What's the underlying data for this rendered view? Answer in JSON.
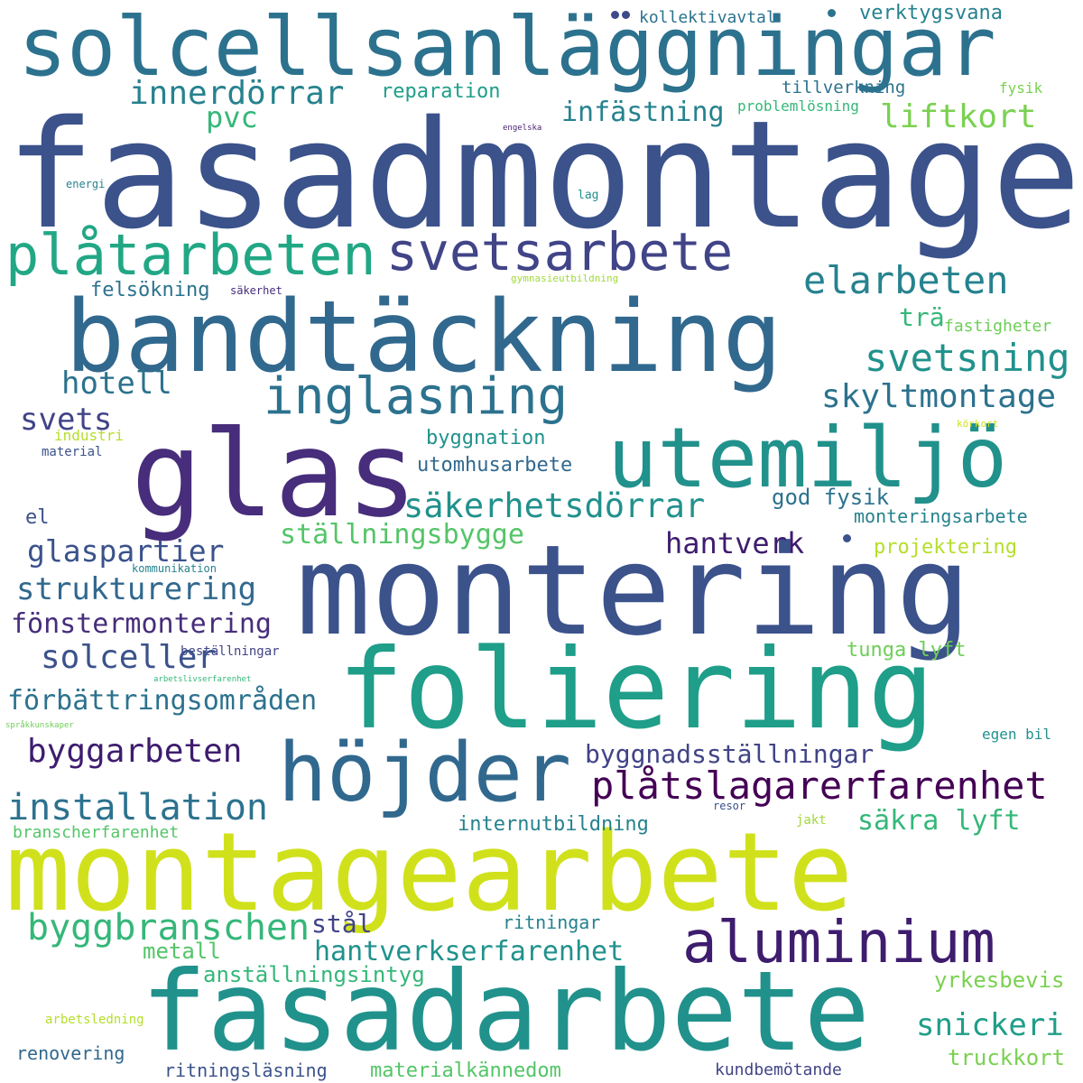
{
  "words": [
    {
      "text": "fasadmontage",
      "color": "#3b528b"
    },
    {
      "text": "solcellsanläggningar",
      "color": "#2c728e"
    },
    {
      "text": "bandtäckning",
      "color": "#31688e"
    },
    {
      "text": "glas",
      "color": "#472d7b"
    },
    {
      "text": "utemiljö",
      "color": "#21918c"
    },
    {
      "text": "montering",
      "color": "#3b528b"
    },
    {
      "text": "foliering",
      "color": "#1f9e89"
    },
    {
      "text": "höjder",
      "color": "#31688e"
    },
    {
      "text": "montagearbete",
      "color": "#d0e11c"
    },
    {
      "text": "fasadarbete",
      "color": "#21918c"
    },
    {
      "text": "aluminium",
      "color": "#3e1c6e"
    },
    {
      "text": "plåtarbeten",
      "color": "#22a785"
    },
    {
      "text": "svetsarbete",
      "color": "#414487"
    },
    {
      "text": "inglasning",
      "color": "#2c728e"
    },
    {
      "text": "innerdörrar",
      "color": "#26828e"
    },
    {
      "text": "pvc",
      "color": "#35b779"
    },
    {
      "text": "reparation",
      "color": "#1f9e89"
    },
    {
      "text": "kollektivavtal",
      "color": "#2c728e"
    },
    {
      "text": "verktygsvana",
      "color": "#26828e"
    },
    {
      "text": "infästning",
      "color": "#26828e"
    },
    {
      "text": "tillverkning",
      "color": "#2c728e"
    },
    {
      "text": "problemlösning",
      "color": "#35b779"
    },
    {
      "text": "fysik",
      "color": "#7ad151"
    },
    {
      "text": "liftkort",
      "color": "#7ad151"
    },
    {
      "text": "engelska",
      "color": "#481f70"
    },
    {
      "text": "energi",
      "color": "#26828e"
    },
    {
      "text": "lag",
      "color": "#21918c"
    },
    {
      "text": "gymnasieutbildning",
      "color": "#a0da39"
    },
    {
      "text": "felsökning",
      "color": "#2c728e"
    },
    {
      "text": "säkerhet",
      "color": "#472d7b"
    },
    {
      "text": "elarbeten",
      "color": "#26828e"
    },
    {
      "text": "trä",
      "color": "#35b779"
    },
    {
      "text": "fastigheter",
      "color": "#6ece58"
    },
    {
      "text": "svetsning",
      "color": "#21918c"
    },
    {
      "text": "hotell",
      "color": "#2c728e"
    },
    {
      "text": "skyltmontage",
      "color": "#2c728e"
    },
    {
      "text": "svets",
      "color": "#414487"
    },
    {
      "text": "industri",
      "color": "#b5de2b"
    },
    {
      "text": "material",
      "color": "#3b528b"
    },
    {
      "text": "körkort",
      "color": "#d0e11c"
    },
    {
      "text": "byggnation",
      "color": "#21918c"
    },
    {
      "text": "utomhusarbete",
      "color": "#31688e"
    },
    {
      "text": "säkerhetsdörrar",
      "color": "#21918c"
    },
    {
      "text": "god fysik",
      "color": "#2c728e"
    },
    {
      "text": "el",
      "color": "#3b528b"
    },
    {
      "text": "monteringsarbete",
      "color": "#26828e"
    },
    {
      "text": "ställningsbygge",
      "color": "#54c568"
    },
    {
      "text": "hantverk",
      "color": "#3e1c6e"
    },
    {
      "text": "glaspartier",
      "color": "#3b528b"
    },
    {
      "text": "projektering",
      "color": "#b5de2b"
    },
    {
      "text": "kommunikation",
      "color": "#26828e"
    },
    {
      "text": "strukturering",
      "color": "#31688e"
    },
    {
      "text": "fönstermontering",
      "color": "#472d7b"
    },
    {
      "text": "beställningar",
      "color": "#414487"
    },
    {
      "text": "solceller",
      "color": "#3b528b"
    },
    {
      "text": "tunga lyft",
      "color": "#6ece58"
    },
    {
      "text": "arbetslivserfarenhet",
      "color": "#35b779"
    },
    {
      "text": "förbättringsområden",
      "color": "#2c728e"
    },
    {
      "text": "språkkunskaper",
      "color": "#6ece58"
    },
    {
      "text": "byggarbeten",
      "color": "#3e1c6e"
    },
    {
      "text": "egen bil",
      "color": "#21918c"
    },
    {
      "text": "byggnadsställningar",
      "color": "#414487"
    },
    {
      "text": "plåtslagarerfarenhet",
      "color": "#440154"
    },
    {
      "text": "installation",
      "color": "#2c728e"
    },
    {
      "text": "resor",
      "color": "#3b528b"
    },
    {
      "text": "branscherfarenhet",
      "color": "#54c568"
    },
    {
      "text": "internutbildning",
      "color": "#26828e"
    },
    {
      "text": "jakt",
      "color": "#a0da39"
    },
    {
      "text": "säkra lyft",
      "color": "#35b779"
    },
    {
      "text": "byggbranschen",
      "color": "#35b779"
    },
    {
      "text": "stål",
      "color": "#414487"
    },
    {
      "text": "ritningar",
      "color": "#26828e"
    },
    {
      "text": "metall",
      "color": "#54c568"
    },
    {
      "text": "hantverkserfarenhet",
      "color": "#21918c"
    },
    {
      "text": "anställningsintyg",
      "color": "#35b779"
    },
    {
      "text": "yrkesbevis",
      "color": "#7ad151"
    },
    {
      "text": "snickeri",
      "color": "#1f9e89"
    },
    {
      "text": "arbetsledning",
      "color": "#b5de2b"
    },
    {
      "text": "renovering",
      "color": "#31688e"
    },
    {
      "text": "truckkort",
      "color": "#7ad151"
    },
    {
      "text": "ritningsläsning",
      "color": "#3b528b"
    },
    {
      "text": "materialkännedom",
      "color": "#54c568"
    },
    {
      "text": "kundbemötande",
      "color": "#414487"
    }
  ],
  "decorations": [
    {
      "color": "#3e4989"
    },
    {
      "color": "#2c728e"
    },
    {
      "color": "#3b528b"
    },
    {
      "color": "#31688e"
    }
  ]
}
